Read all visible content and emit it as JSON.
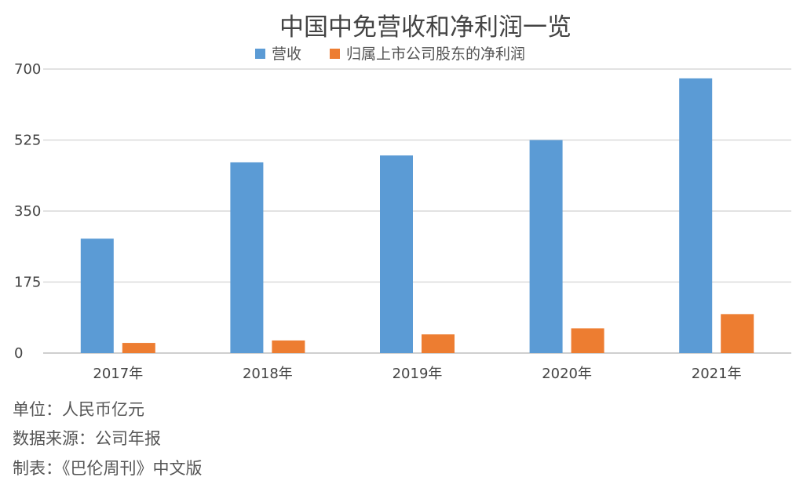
{
  "chart_data": {
    "type": "bar",
    "title": "中国中免营收和净利润一览",
    "categories": [
      "2017年",
      "2018年",
      "2019年",
      "2020年",
      "2021年"
    ],
    "series": [
      {
        "name": "营收",
        "color": "#5b9bd5",
        "values": [
          282,
          470,
          487,
          525,
          677
        ]
      },
      {
        "name": "归属上市公司股东的净利润",
        "color": "#ed7d31",
        "values": [
          25,
          31,
          46,
          61,
          96
        ]
      }
    ],
    "ylim": [
      0,
      700
    ],
    "yticks": [
      "0",
      "175",
      "350",
      "525",
      "700"
    ],
    "ytick_values": [
      0,
      175,
      350,
      525,
      700
    ],
    "grid": true,
    "legend_position": "top"
  },
  "footer": {
    "unit": "单位：人民币亿元",
    "source": "数据来源：公司年报",
    "credit": "制表：《巴伦周刊》中文版"
  }
}
